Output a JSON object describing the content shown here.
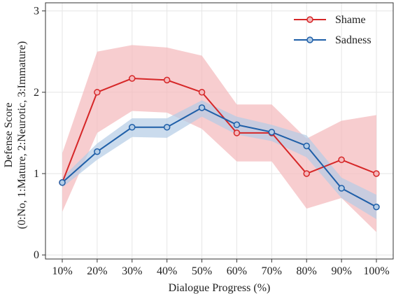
{
  "chart_data": {
    "type": "line",
    "title": "",
    "xlabel": "Dialogue Progress (%)",
    "ylabel_lines": [
      "Defense Score",
      "(0:No, 1:Mature, 2:Neurotic, 3:Immature)"
    ],
    "categories": [
      "10%",
      "20%",
      "30%",
      "40%",
      "50%",
      "60%",
      "70%",
      "80%",
      "90%",
      "100%"
    ],
    "y_ticks": [
      0,
      1,
      2,
      3
    ],
    "ylim": [
      -0.05,
      3.1
    ],
    "grid": true,
    "legend_position": "top-right",
    "series": [
      {
        "name": "Shame",
        "color": "#d62728",
        "band_color": "#f4b8bb",
        "values": [
          0.89,
          2.0,
          2.17,
          2.15,
          2.0,
          1.5,
          1.5,
          1.0,
          1.17,
          1.0
        ],
        "lower": [
          0.53,
          1.5,
          1.77,
          1.75,
          1.55,
          1.15,
          1.15,
          0.57,
          0.7,
          0.28
        ],
        "upper": [
          1.25,
          2.5,
          2.58,
          2.55,
          2.45,
          1.85,
          1.85,
          1.43,
          1.65,
          1.72
        ]
      },
      {
        "name": "Sadness",
        "color": "#1f5fa8",
        "band_color": "#b3cce6",
        "values": [
          0.89,
          1.27,
          1.57,
          1.57,
          1.81,
          1.6,
          1.51,
          1.34,
          0.82,
          0.59
        ],
        "lower": [
          0.83,
          1.17,
          1.45,
          1.44,
          1.7,
          1.48,
          1.4,
          1.2,
          0.7,
          0.44
        ],
        "upper": [
          0.95,
          1.37,
          1.68,
          1.68,
          1.9,
          1.7,
          1.6,
          1.47,
          0.95,
          0.74
        ]
      }
    ]
  }
}
